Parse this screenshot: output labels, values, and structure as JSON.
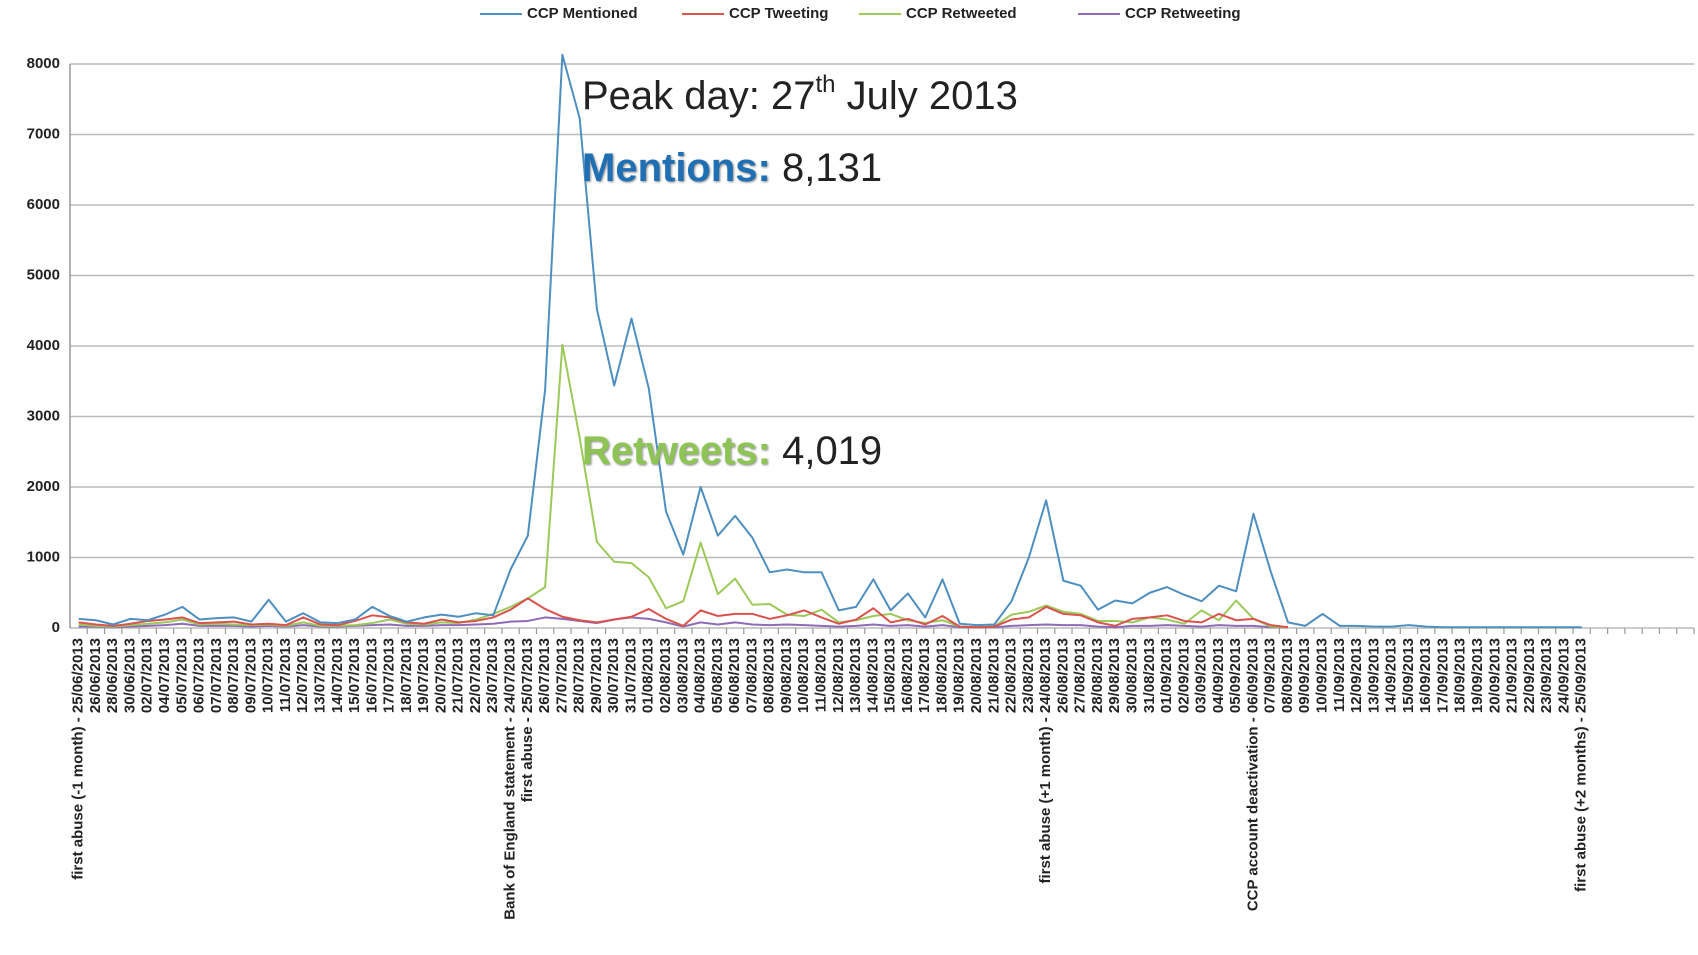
{
  "chart_data": {
    "type": "line",
    "categories": [
      "first abuse (-1 month) - 25/06/2013",
      "26/06/2013",
      "28/06/2013",
      "30/06/2013",
      "02/07/2013",
      "04/07/2013",
      "05/07/2013",
      "06/07/2013",
      "07/07/2013",
      "08/07/2013",
      "09/07/2013",
      "10/07/2013",
      "11/07/2013",
      "12/07/2013",
      "13/07/2013",
      "14/07/2013",
      "15/07/2013",
      "16/07/2013",
      "17/07/2013",
      "18/07/2013",
      "19/07/2013",
      "20/07/2013",
      "21/07/2013",
      "22/07/2013",
      "23/07/2013",
      "Bank of England statement - 24/07/2013",
      "first abuse - 25/07/2013",
      "26/07/2013",
      "27/07/2013",
      "28/07/2013",
      "29/07/2013",
      "30/07/2013",
      "31/07/2013",
      "01/08/2013",
      "02/08/2013",
      "03/08/2013",
      "04/08/2013",
      "05/08/2013",
      "06/08/2013",
      "07/08/2013",
      "08/08/2013",
      "09/08/2013",
      "10/08/2013",
      "11/08/2013",
      "12/08/2013",
      "13/08/2013",
      "14/08/2013",
      "15/08/2013",
      "16/08/2013",
      "17/08/2013",
      "18/08/2013",
      "19/08/2013",
      "20/08/2013",
      "21/08/2013",
      "22/08/2013",
      "23/08/2013",
      "first abuse (+1 month) - 24/08/2013",
      "26/08/2013",
      "27/08/2013",
      "28/08/2013",
      "29/08/2013",
      "30/08/2013",
      "31/08/2013",
      "01/09/2013",
      "02/09/2013",
      "03/09/2013",
      "04/09/2013",
      "05/09/2013",
      "CCP account deactivation - 06/09/2013",
      "07/09/2013",
      "08/09/2013",
      "09/09/2013",
      "10/09/2013",
      "11/09/2013",
      "12/09/2013",
      "13/09/2013",
      "14/09/2013",
      "15/09/2013",
      "16/09/2013",
      "17/09/2013",
      "18/09/2013",
      "19/09/2013",
      "20/09/2013",
      "21/09/2013",
      "22/09/2013",
      "23/09/2013",
      "24/09/2013",
      "first abuse (+2 months) - 25/09/2013",
      null,
      null,
      null,
      null,
      null,
      null
    ],
    "series": [
      {
        "name": "CCP Mentioned",
        "color": "#4f8fc0",
        "values": [
          130,
          110,
          50,
          130,
          110,
          190,
          300,
          120,
          140,
          150,
          90,
          400,
          90,
          210,
          80,
          70,
          120,
          300,
          170,
          90,
          150,
          190,
          160,
          210,
          180,
          830,
          1310,
          3380,
          8131,
          7230,
          4520,
          3440,
          4390,
          3400,
          1650,
          1040,
          2000,
          1310,
          1590,
          1280,
          790,
          830,
          790,
          790,
          250,
          300,
          690,
          250,
          490,
          150,
          690,
          60,
          40,
          50,
          380,
          1000,
          1810,
          670,
          600,
          260,
          390,
          350,
          500,
          580,
          470,
          380,
          600,
          520,
          1620,
          800,
          80,
          30,
          200,
          30,
          30,
          20,
          20,
          40,
          20,
          10,
          10,
          10,
          10,
          10,
          10,
          10,
          10,
          10,
          null,
          null,
          null,
          null,
          null,
          null
        ]
      },
      {
        "name": "CCP Tweeting",
        "color": "#d9534f",
        "values": [
          80,
          50,
          30,
          60,
          100,
          120,
          150,
          70,
          80,
          90,
          50,
          60,
          40,
          150,
          50,
          40,
          100,
          180,
          150,
          80,
          60,
          120,
          80,
          100,
          150,
          260,
          420,
          270,
          160,
          110,
          80,
          120,
          160,
          270,
          130,
          30,
          250,
          170,
          200,
          200,
          130,
          180,
          250,
          150,
          60,
          120,
          280,
          80,
          130,
          50,
          170,
          20,
          10,
          20,
          120,
          150,
          300,
          200,
          180,
          80,
          30,
          130,
          150,
          180,
          100,
          80,
          200,
          110,
          130,
          40,
          10,
          null,
          null,
          null,
          null,
          null,
          null,
          null,
          null,
          null,
          null,
          null,
          null,
          null,
          null,
          null,
          null,
          null,
          null,
          null,
          null,
          null,
          null,
          null
        ]
      },
      {
        "name": "CCP Retweeted",
        "color": "#9bc95a",
        "values": [
          50,
          30,
          20,
          40,
          60,
          80,
          120,
          50,
          60,
          50,
          40,
          50,
          30,
          80,
          30,
          30,
          40,
          70,
          120,
          60,
          50,
          80,
          70,
          120,
          200,
          300,
          420,
          580,
          4019,
          2700,
          1220,
          940,
          920,
          720,
          280,
          380,
          1210,
          480,
          700,
          330,
          340,
          190,
          170,
          260,
          80,
          110,
          170,
          200,
          110,
          70,
          110,
          20,
          10,
          20,
          190,
          230,
          320,
          230,
          200,
          100,
          100,
          80,
          150,
          120,
          60,
          250,
          110,
          390,
          130,
          20,
          10,
          null,
          null,
          null,
          null,
          null,
          null,
          null,
          null,
          null,
          null,
          null,
          null,
          null,
          null,
          null,
          null,
          null,
          null,
          null,
          null,
          null,
          null,
          null
        ]
      },
      {
        "name": "CCP Retweeting",
        "color": "#8e6cb5",
        "values": [
          20,
          20,
          10,
          20,
          30,
          40,
          60,
          30,
          30,
          30,
          20,
          30,
          20,
          40,
          20,
          20,
          30,
          40,
          50,
          30,
          30,
          40,
          40,
          50,
          60,
          90,
          100,
          150,
          130,
          100,
          70,
          120,
          150,
          130,
          80,
          20,
          80,
          50,
          80,
          50,
          40,
          50,
          40,
          30,
          20,
          30,
          50,
          30,
          40,
          20,
          40,
          10,
          10,
          10,
          30,
          40,
          50,
          40,
          40,
          20,
          10,
          30,
          30,
          40,
          30,
          20,
          40,
          30,
          30,
          10,
          10,
          null,
          null,
          null,
          null,
          null,
          null,
          null,
          null,
          null,
          null,
          null,
          null,
          null,
          null,
          null,
          null,
          null,
          null,
          null,
          null,
          null,
          null,
          null
        ]
      }
    ],
    "ylim": [
      0,
      8000
    ],
    "yticks": [
      0,
      1000,
      2000,
      3000,
      4000,
      5000,
      6000,
      7000,
      8000
    ],
    "grid": true,
    "legend": "top",
    "annotations": {
      "peak": {
        "prefix": "Peak day: 27",
        "sup": "th",
        "suffix": " July 2013"
      },
      "mentions": {
        "label": "Mentions:",
        "value": "8,131",
        "color": "#1f6fb5"
      },
      "retweets": {
        "label": "Retweets:",
        "value": "4,019",
        "color": "#8dc454"
      }
    }
  }
}
